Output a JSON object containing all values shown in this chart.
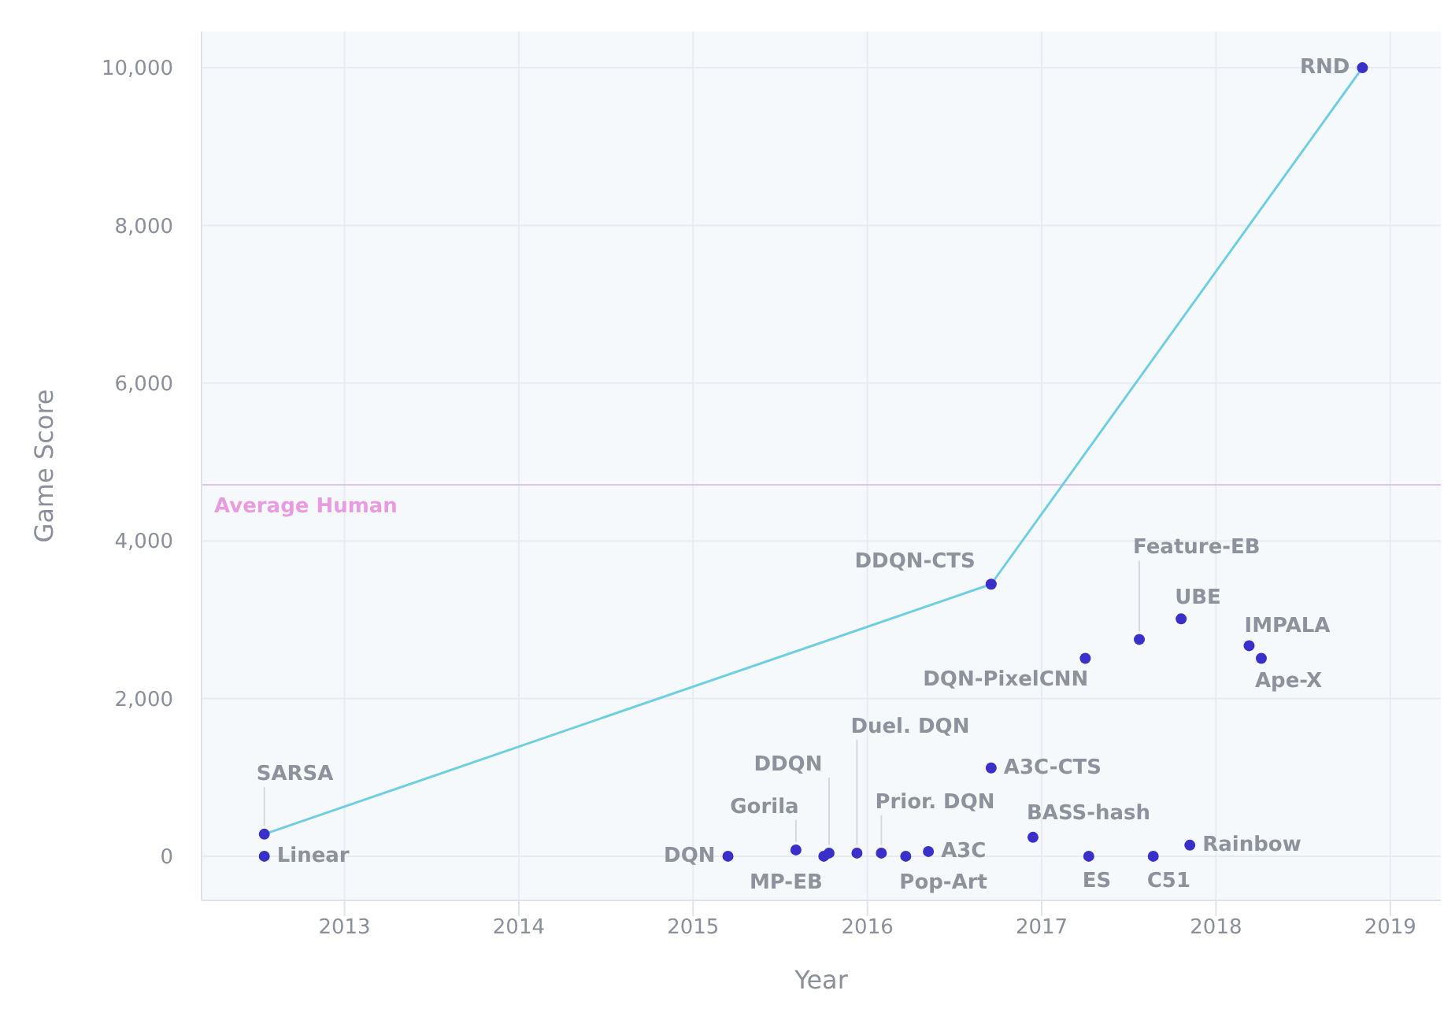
{
  "chart_data": {
    "type": "scatter",
    "xlabel": "Year",
    "ylabel": "Game Score",
    "xlim": [
      2012.18,
      2019.29
    ],
    "ylim": [
      -560,
      10460
    ],
    "xticks": [
      2013,
      2014,
      2015,
      2016,
      2017,
      2018,
      2019
    ],
    "yticks": [
      {
        "value": 0,
        "label": "0"
      },
      {
        "value": 2000,
        "label": "2,000"
      },
      {
        "value": 4000,
        "label": "4,000"
      },
      {
        "value": 6000,
        "label": "6,000"
      },
      {
        "value": 8000,
        "label": "8,000"
      },
      {
        "value": 10000,
        "label": "10,000"
      }
    ],
    "grid": true,
    "legend": false,
    "marker": "circle",
    "series": [
      {
        "type": "line",
        "color": "#6fcfe0",
        "marker": "none",
        "x": [
          2012.54,
          2016.71,
          2018.84
        ],
        "values": [
          280,
          3450,
          10000
        ]
      },
      {
        "color": "#3a2fc8",
        "x": [
          2012.54,
          2012.54,
          2015.2,
          2015.59,
          2015.75,
          2015.78,
          2015.94,
          2016.08,
          2016.22,
          2016.35,
          2016.71,
          2016.95,
          2017.25,
          2017.27,
          2017.56,
          2017.8,
          2017.64,
          2017.85,
          2018.19,
          2018.26,
          2016.71,
          2018.84
        ],
        "values": [
          280,
          0,
          0,
          80,
          0,
          40,
          40,
          40,
          0,
          60,
          1120,
          240,
          2510,
          0,
          2750,
          3010,
          0,
          140,
          2670,
          2510,
          3450,
          10000
        ]
      }
    ],
    "ref_lines": [
      {
        "axis": "y",
        "value": 4710,
        "label": "Average Human",
        "color": "#e0c4ea"
      }
    ],
    "annotations": [
      {
        "text": "SARSA",
        "x": 2012.54,
        "y": 280
      },
      {
        "text": "Linear",
        "x": 2012.54,
        "y": 0
      },
      {
        "text": "DQN",
        "x": 2015.2,
        "y": 0
      },
      {
        "text": "Gorila",
        "x": 2015.59,
        "y": 80
      },
      {
        "text": "MP-EB",
        "x": 2015.75,
        "y": 0
      },
      {
        "text": "DDQN",
        "x": 2015.78,
        "y": 40
      },
      {
        "text": "Duel. DQN",
        "x": 2015.94,
        "y": 40
      },
      {
        "text": "Prior. DQN",
        "x": 2016.08,
        "y": 40
      },
      {
        "text": "Pop-Art",
        "x": 2016.22,
        "y": 0
      },
      {
        "text": "A3C",
        "x": 2016.35,
        "y": 60
      },
      {
        "text": "A3C-CTS",
        "x": 2016.71,
        "y": 1120
      },
      {
        "text": "BASS-hash",
        "x": 2016.95,
        "y": 240
      },
      {
        "text": "DQN-PixelCNN",
        "x": 2017.25,
        "y": 2510
      },
      {
        "text": "ES",
        "x": 2017.27,
        "y": 0
      },
      {
        "text": "Feature-EB",
        "x": 2017.56,
        "y": 2750
      },
      {
        "text": "UBE",
        "x": 2017.8,
        "y": 3010
      },
      {
        "text": "C51",
        "x": 2017.64,
        "y": 0
      },
      {
        "text": "Rainbow",
        "x": 2017.85,
        "y": 140
      },
      {
        "text": "IMPALA",
        "x": 2018.19,
        "y": 2670
      },
      {
        "text": "Ape-X",
        "x": 2018.26,
        "y": 2510
      },
      {
        "text": "DDQN-CTS",
        "x": 2016.71,
        "y": 3450
      },
      {
        "text": "RND",
        "x": 2018.84,
        "y": 10000
      }
    ]
  }
}
